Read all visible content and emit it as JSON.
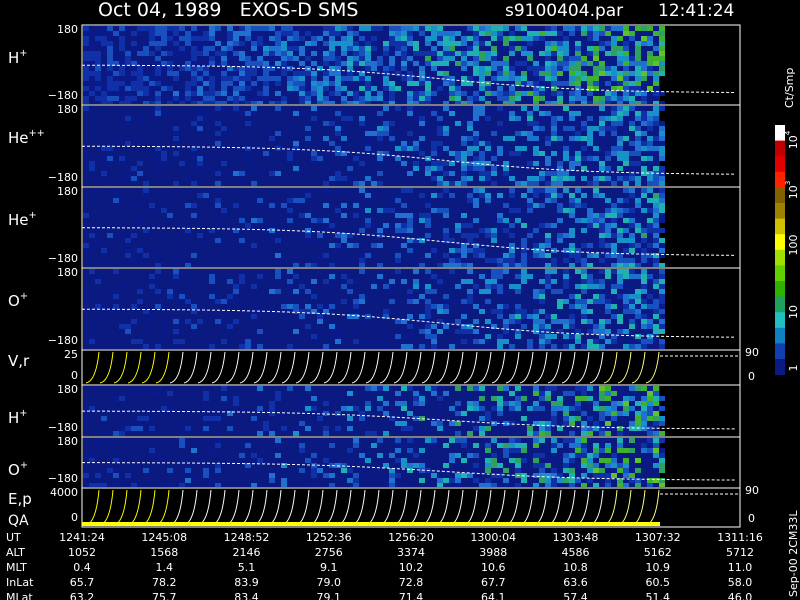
{
  "header": {
    "title": "Oct 04, 1989   EXOS-D SMS",
    "file": "s9100404.par",
    "time": "12:41:24"
  },
  "panels": [
    {
      "label": "H",
      "sup": "+",
      "top": "180",
      "bottom": "−180"
    },
    {
      "label": "He",
      "sup": "++",
      "top": "180",
      "bottom": "−180"
    },
    {
      "label": "He",
      "sup": "+",
      "top": "180",
      "bottom": "−180"
    },
    {
      "label": "O",
      "sup": "+",
      "top": "180",
      "bottom": "−180"
    },
    {
      "label": "V,r",
      "top": "25",
      "bottom": "0",
      "right_top": "90",
      "right_bottom": "0"
    },
    {
      "label": "H",
      "sup": "+",
      "top": "180",
      "bottom": "−180"
    },
    {
      "label": "O",
      "sup": "+",
      "top": "180",
      "bottom": "−180"
    },
    {
      "label": "E,p",
      "label2": "QA",
      "top": "4000",
      "bottom": "0",
      "right_top": "90",
      "right_bottom": "0"
    }
  ],
  "colorbar": {
    "unit": "Ct/Smp",
    "ticks": [
      {
        "base": "1"
      },
      {
        "base": "10"
      },
      {
        "base": "100"
      },
      {
        "base": "10",
        "sup": "3"
      },
      {
        "base": "10",
        "sup": "4"
      }
    ]
  },
  "table": {
    "rows": [
      {
        "label": "UT",
        "values": [
          "1241:24",
          "1245:08",
          "1248:52",
          "1252:36",
          "1256:20",
          "1300:04",
          "1303:48",
          "1307:32",
          "1311:16"
        ]
      },
      {
        "label": "ALT",
        "values": [
          "1052",
          "1568",
          "2146",
          "2756",
          "3374",
          "3988",
          "4586",
          "5162",
          "5712"
        ]
      },
      {
        "label": "MLT",
        "values": [
          "0.4",
          "1.4",
          "5.1",
          "9.1",
          "10.2",
          "10.6",
          "10.8",
          "10.9",
          "11.0"
        ]
      },
      {
        "label": "InLat",
        "values": [
          "65.7",
          "78.2",
          "83.9",
          "79.0",
          "72.8",
          "67.7",
          "63.6",
          "60.5",
          "58.0"
        ]
      },
      {
        "label": "MLat",
        "values": [
          "63.2",
          "75.7",
          "83.4",
          "79.1",
          "71.4",
          "64.1",
          "57.4",
          "51.4",
          "46.0"
        ]
      }
    ]
  },
  "footer": "Sep-00 2CM33L"
}
